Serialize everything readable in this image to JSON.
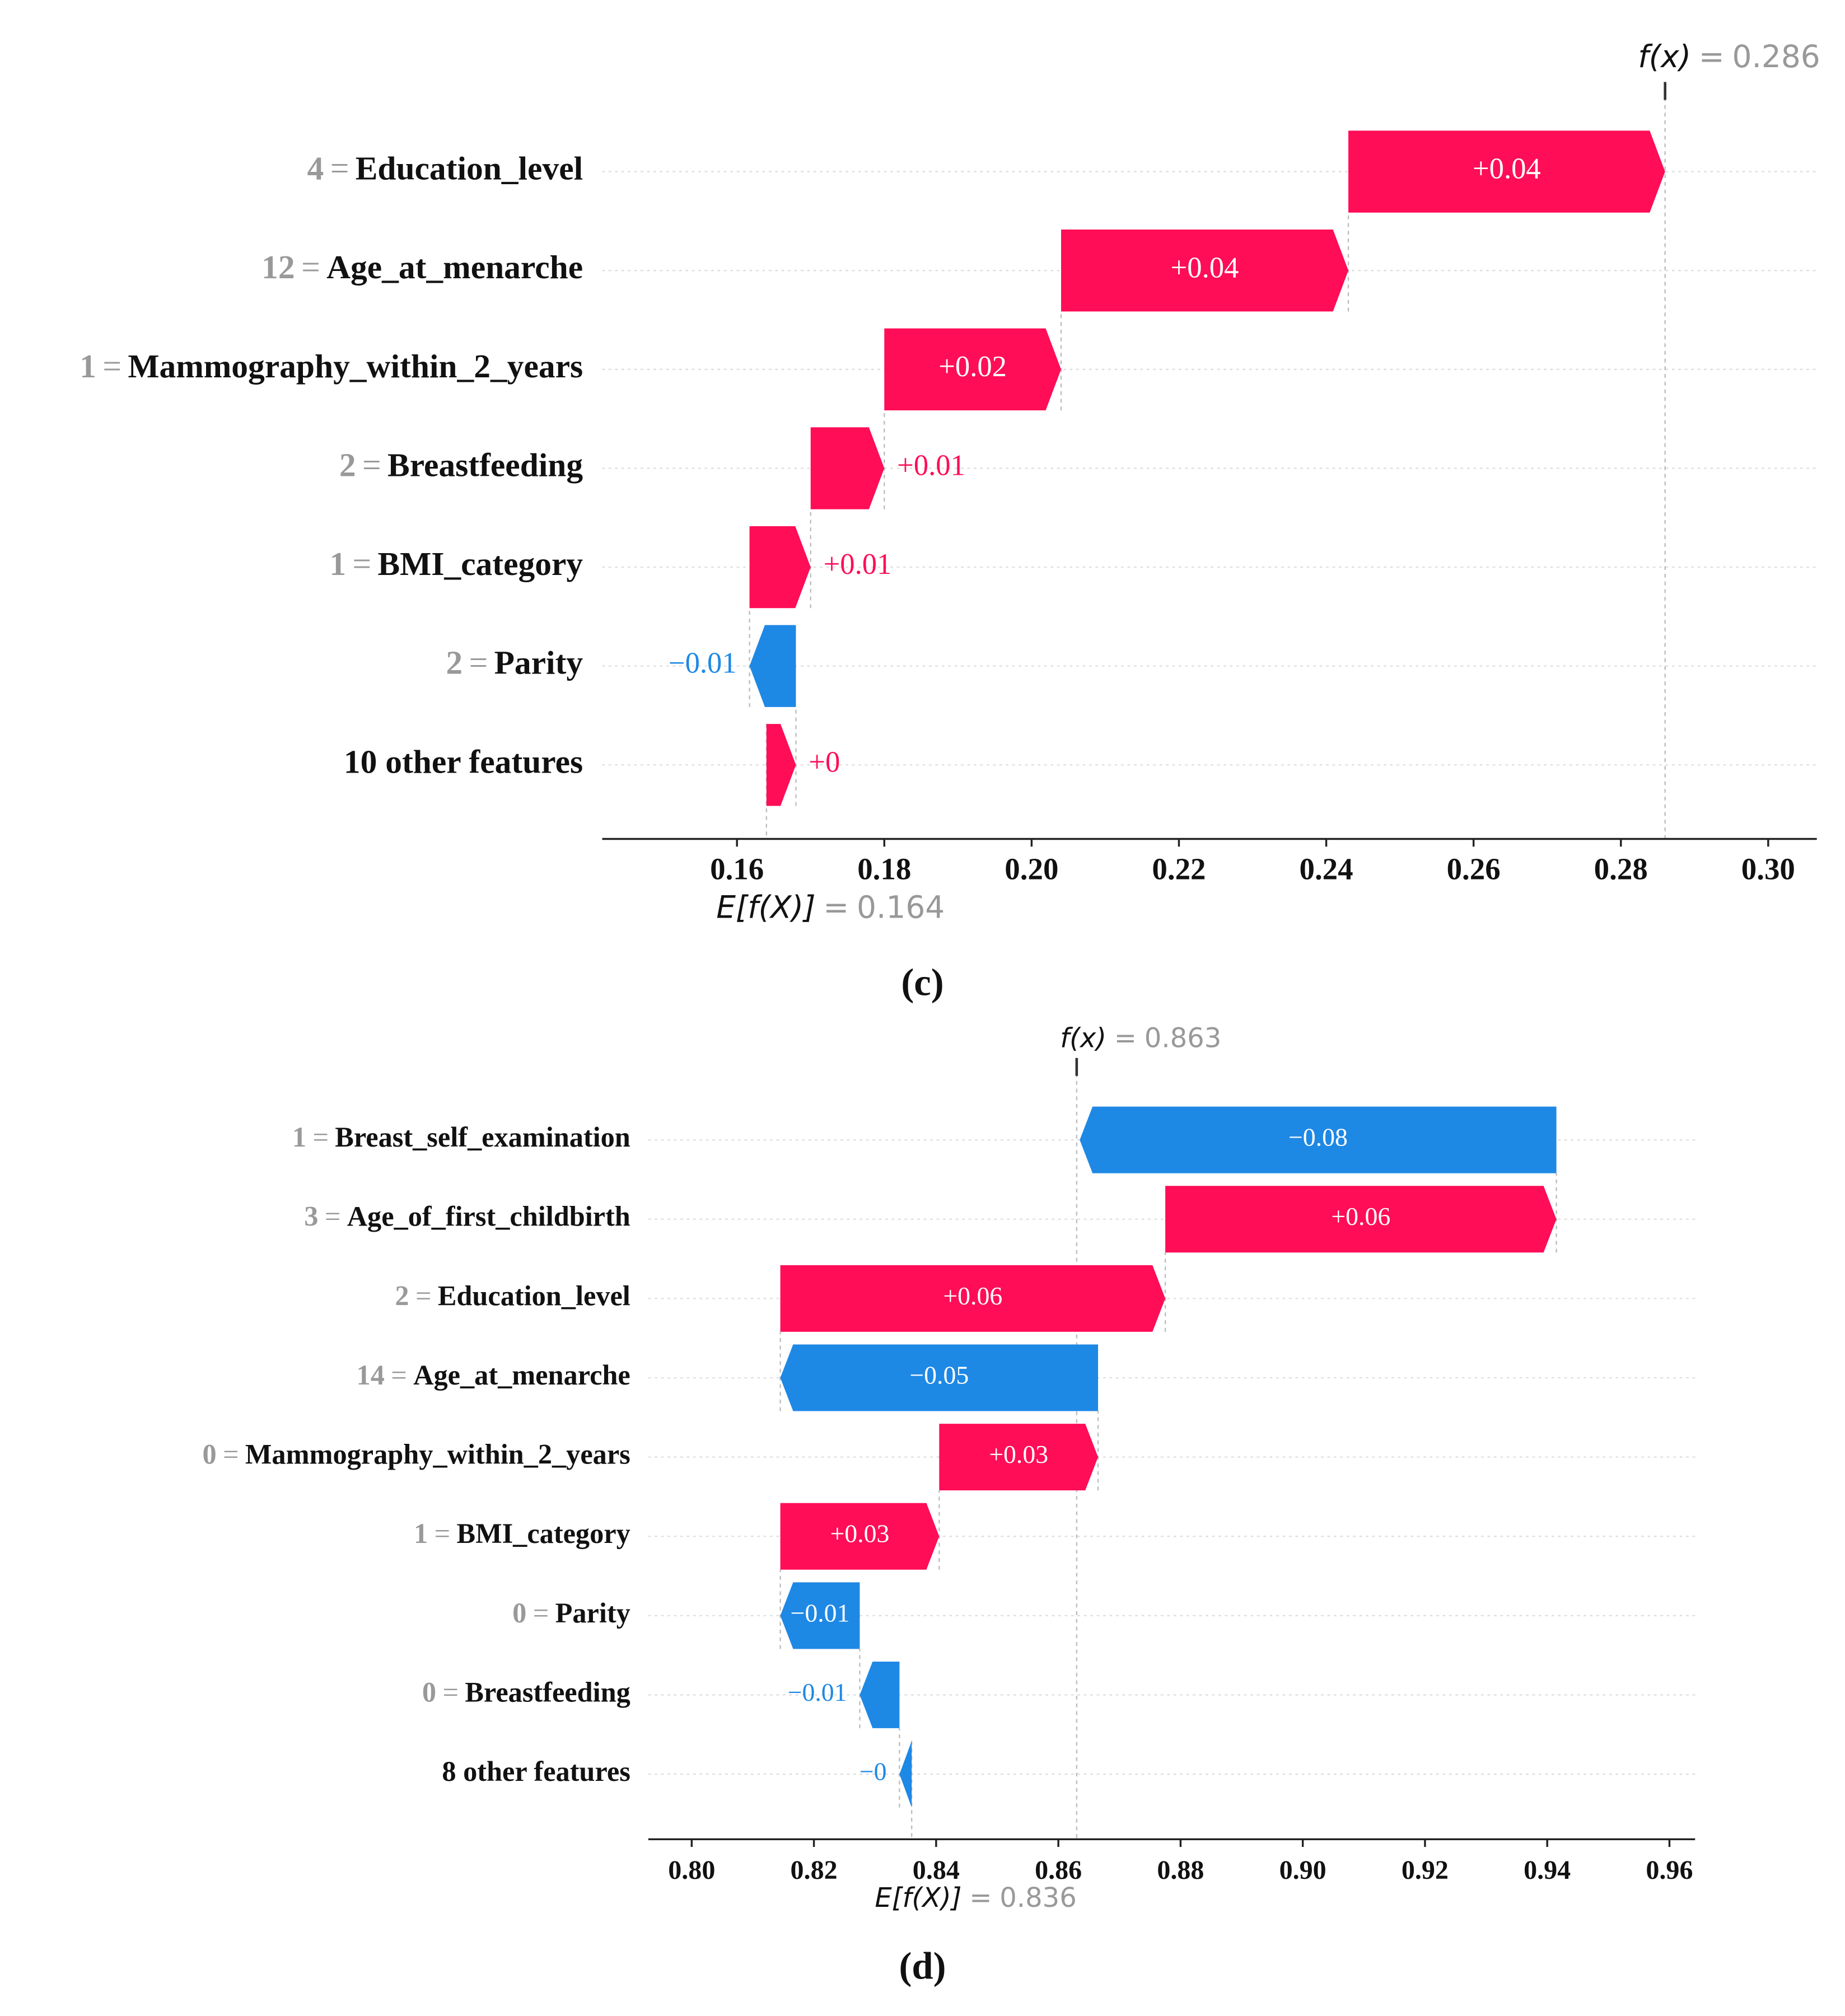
{
  "chart_data": [
    {
      "type": "waterfall",
      "caption": "(c)",
      "separator": "=",
      "fx_label": "f(x)",
      "fx": 0.286,
      "base_label": "E[f(X)]",
      "base_value": 0.164,
      "labels": [
        {
          "feature_value": "4",
          "name": "Education_level"
        },
        {
          "feature_value": "12",
          "name": "Age_at_menarche"
        },
        {
          "feature_value": "1",
          "name": "Mammography_within_2_years"
        },
        {
          "feature_value": "2",
          "name": "Breastfeeding"
        },
        {
          "feature_value": "1",
          "name": "BMI_category"
        },
        {
          "feature_value": "2",
          "name": "Parity"
        },
        {
          "name": "10 other features"
        }
      ],
      "values": [
        0.043,
        0.039,
        0.024,
        0.01,
        0.0083,
        -0.0063,
        0.004
      ],
      "value_labels": [
        "+0.04",
        "+0.04",
        "+0.02",
        "+0.01",
        "+0.01",
        "−0.01",
        "+0"
      ],
      "positive_color": "#ff0d57",
      "negative_color": "#1e88e5",
      "xlim": [
        0.1417,
        0.3066
      ],
      "xticks": [
        0.16,
        0.18,
        {
          "value": 0.2,
          "label": "0.20"
        },
        0.22,
        0.24,
        0.26,
        0.28,
        {
          "value": 0.3,
          "label": "0.30"
        }
      ],
      "grid": true
    },
    {
      "type": "waterfall",
      "caption": "(d)",
      "separator": "=",
      "fx_label": "f(x)",
      "fx": 0.863,
      "base_label": "E[f(X)]",
      "base_value": 0.836,
      "labels": [
        {
          "feature_value": "1",
          "name": "Breast_self_examination"
        },
        {
          "feature_value": "3",
          "name": "Age_of_first_childbirth"
        },
        {
          "feature_value": "2",
          "name": "Education_level"
        },
        {
          "feature_value": "14",
          "name": "Age_at_menarche"
        },
        {
          "feature_value": "0",
          "name": "Mammography_within_2_years"
        },
        {
          "feature_value": "1",
          "name": "BMI_category"
        },
        {
          "feature_value": "0",
          "name": "Parity"
        },
        {
          "feature_value": "0",
          "name": "Breastfeeding"
        },
        {
          "name": "8 other features"
        }
      ],
      "values": [
        -0.078,
        0.064,
        0.063,
        -0.052,
        0.026,
        0.026,
        -0.013,
        -0.0065,
        -0.002
      ],
      "value_labels": [
        "−0.08",
        "+0.06",
        "+0.06",
        "−0.05",
        "+0.03",
        "+0.03",
        "−0.01",
        "−0.01",
        "−0"
      ],
      "positive_color": "#ff0d57",
      "negative_color": "#1e88e5",
      "xlim": [
        0.7929,
        0.9642
      ],
      "xticks": [
        {
          "value": 0.8,
          "label": "0.80"
        },
        0.82,
        0.84,
        0.86,
        0.88,
        {
          "value": 0.9,
          "label": "0.90"
        },
        0.92,
        0.94,
        0.96
      ],
      "grid": true
    }
  ]
}
